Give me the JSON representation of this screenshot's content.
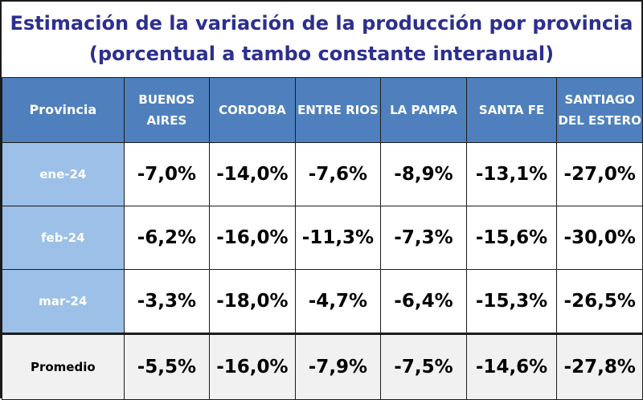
{
  "chart_data": {
    "type": "table",
    "title": "Estimación de la variación de la producción por provincia",
    "subtitle": "(porcentual a tambo constante interanual)",
    "header": {
      "corner": "Provincia",
      "columns": [
        [
          "BUENOS",
          "AIRES"
        ],
        [
          "CORDOBA"
        ],
        [
          "ENTRE RIOS"
        ],
        [
          "LA PAMPA"
        ],
        [
          "SANTA FE"
        ],
        [
          "SANTIAGO",
          "DEL ESTERO"
        ]
      ]
    },
    "rows": [
      {
        "label": "ene-24",
        "values": [
          "-7,0%",
          "-14,0%",
          "-7,6%",
          "-8,9%",
          "-13,1%",
          "-27,0%"
        ]
      },
      {
        "label": "feb-24",
        "values": [
          "-6,2%",
          "-16,0%",
          "-11,3%",
          "-7,3%",
          "-15,6%",
          "-30,0%"
        ]
      },
      {
        "label": "mar-24",
        "values": [
          "-3,3%",
          "-18,0%",
          "-4,7%",
          "-6,4%",
          "-15,3%",
          "-26,5%"
        ]
      }
    ],
    "average": {
      "label": "Promedio",
      "values": [
        "-5,5%",
        "-16,0%",
        "-7,9%",
        "-7,5%",
        "-14,6%",
        "-27,8%"
      ]
    },
    "colors": {
      "title": "#2c2f8e",
      "header_bg": "#4f80bd",
      "label_bg": "#9cc0e8",
      "average_bg": "#f1f1f1"
    }
  }
}
